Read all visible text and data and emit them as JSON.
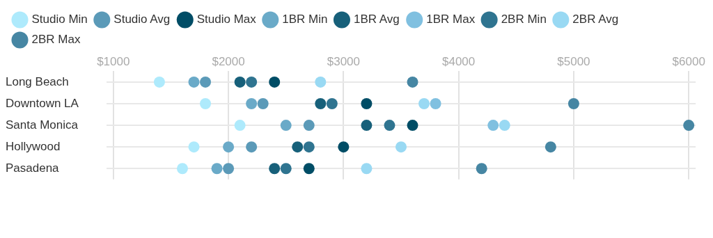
{
  "chart_data": {
    "type": "scatter",
    "orientation": "horizontal",
    "categories": [
      "Long Beach",
      "Downtown LA",
      "Santa Monica",
      "Hollywood",
      "Pasadena"
    ],
    "series": [
      {
        "name": "Studio Min",
        "color": "#aeeafc",
        "values": [
          1400,
          1800,
          2100,
          1700,
          1600
        ]
      },
      {
        "name": "Studio Avg",
        "color": "#5b9ab8",
        "values": [
          1800,
          2300,
          2700,
          2200,
          2000
        ]
      },
      {
        "name": "Studio Max",
        "color": "#004d66",
        "values": [
          2400,
          3200,
          3600,
          3000,
          2700
        ]
      },
      {
        "name": "1BR Min",
        "color": "#6aaac8",
        "values": [
          1700,
          2200,
          2500,
          2000,
          1900
        ]
      },
      {
        "name": "1BR Avg",
        "color": "#17607a",
        "values": [
          2100,
          2800,
          3200,
          2600,
          2400
        ]
      },
      {
        "name": "1BR Max",
        "color": "#80c0e0",
        "values": [
          null,
          3800,
          4300,
          null,
          null
        ]
      },
      {
        "name": "2BR Min",
        "color": "#2f7490",
        "values": [
          2200,
          2900,
          3400,
          2700,
          2500
        ]
      },
      {
        "name": "2BR Avg",
        "color": "#99d9f3",
        "values": [
          2800,
          3700,
          4400,
          3500,
          3200
        ]
      },
      {
        "name": "2BR Max",
        "color": "#4686a3",
        "values": [
          3600,
          5000,
          6000,
          4800,
          4200
        ]
      }
    ],
    "xlim": [
      940,
      6060
    ],
    "xticks": [
      {
        "value": 1000,
        "label": "$1000"
      },
      {
        "value": 2000,
        "label": "$2000"
      },
      {
        "value": 3000,
        "label": "$3000"
      },
      {
        "value": 4000,
        "label": "$4000"
      },
      {
        "value": 5000,
        "label": "$5000"
      },
      {
        "value": 6000,
        "label": "$6000"
      }
    ],
    "grid": true,
    "legend": "top left",
    "marker": "circle"
  }
}
